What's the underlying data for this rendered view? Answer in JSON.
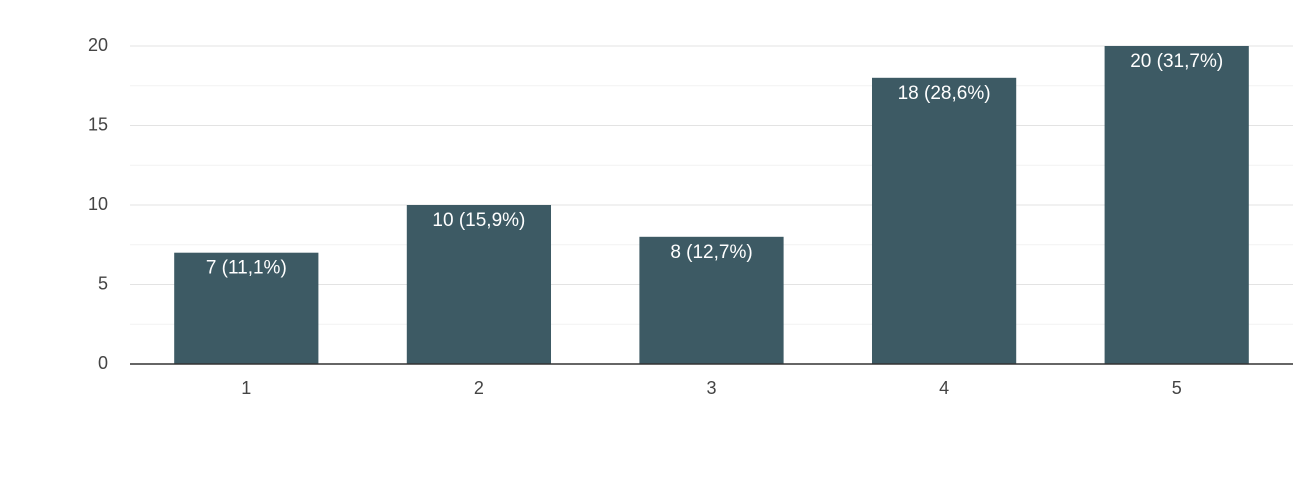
{
  "chart_data": {
    "type": "bar",
    "categories": [
      "1",
      "2",
      "3",
      "4",
      "5"
    ],
    "values": [
      7,
      10,
      8,
      18,
      20
    ],
    "value_labels": [
      "7 (11,1%)",
      "10 (15,9%)",
      "8 (12,7%)",
      "18 (28,6%)",
      "20 (31,7%)"
    ],
    "color": "#3d5a64",
    "ylim": [
      0,
      20
    ],
    "yticks": [
      0,
      5,
      10,
      15,
      20
    ],
    "minor_yticks": [
      2.5,
      7.5,
      12.5,
      17.5
    ],
    "grid": true
  }
}
